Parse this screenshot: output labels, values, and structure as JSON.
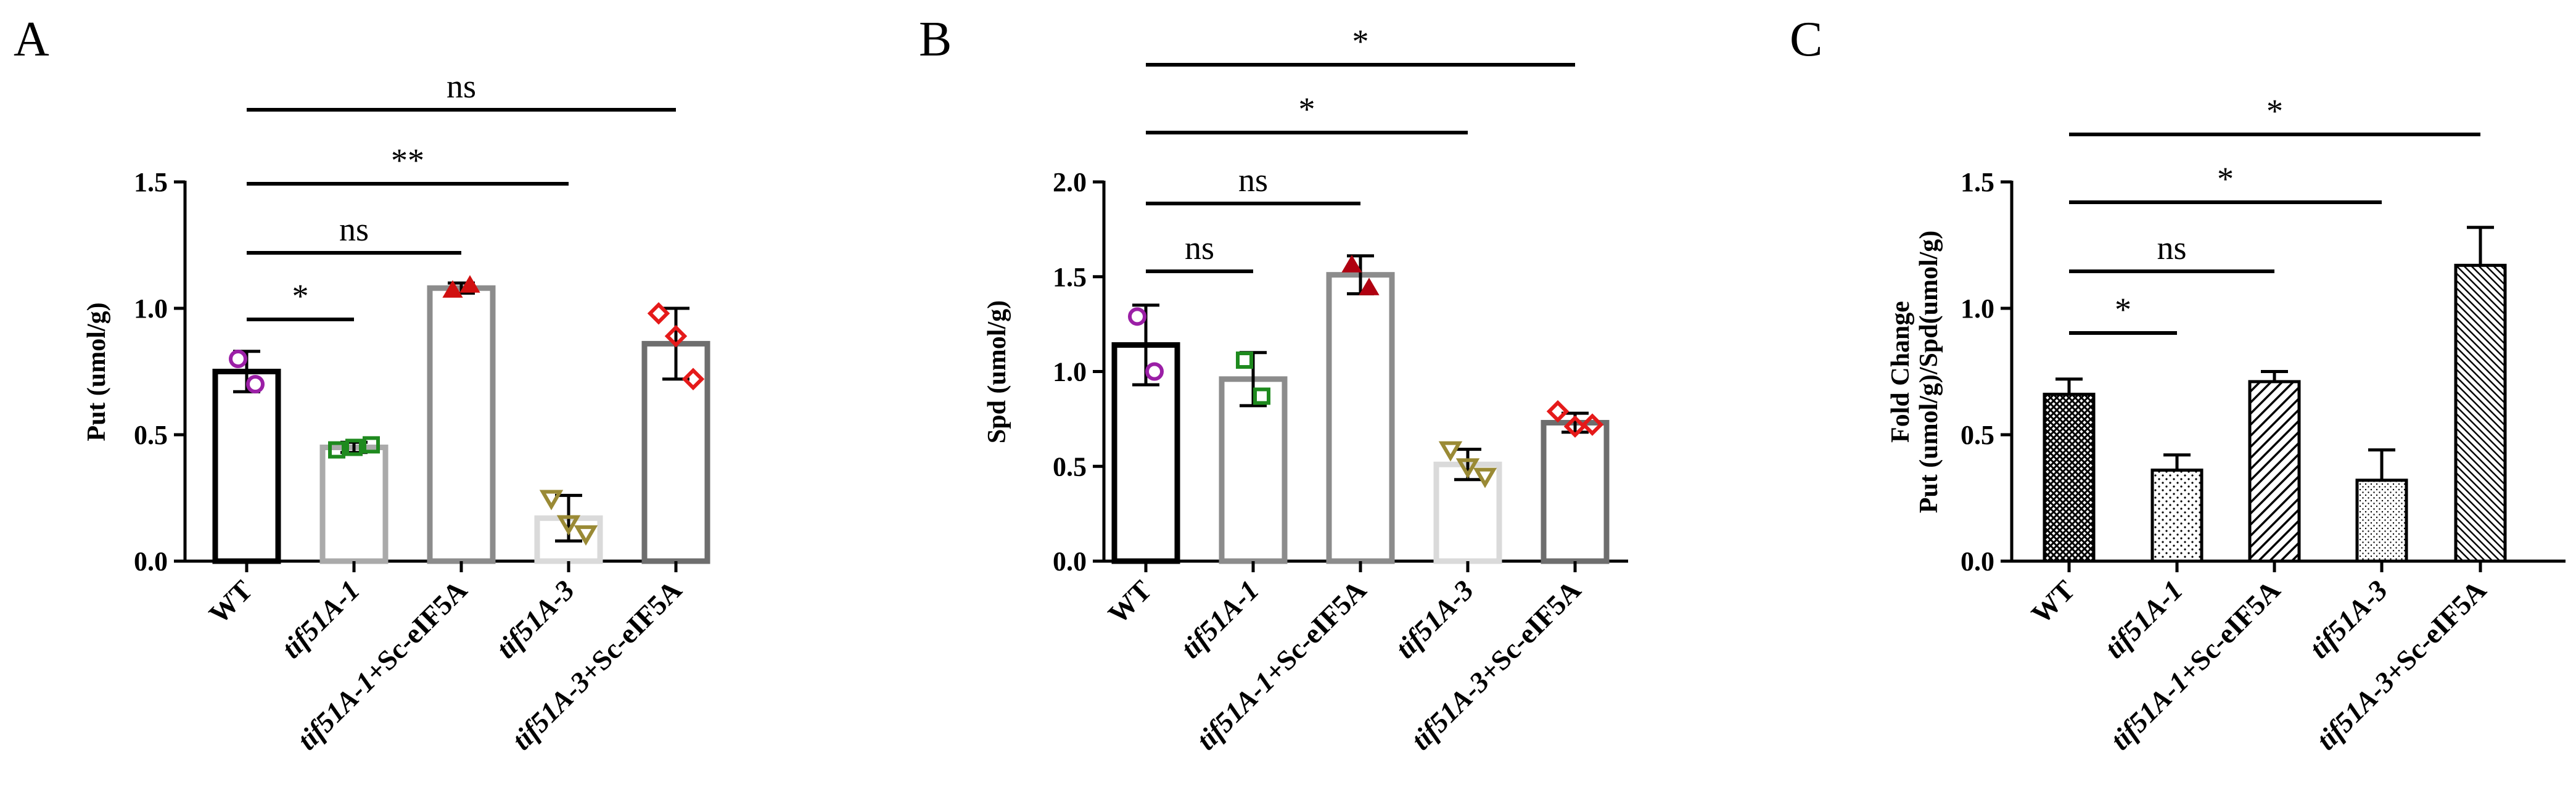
{
  "chart_data": [
    {
      "panel": "A",
      "type": "bar",
      "ylabel": "Put (umol/g)",
      "ylim": [
        0,
        1.5
      ],
      "yticks": [
        "0.0",
        "0.5",
        "1.0",
        "1.5"
      ],
      "categories": [
        {
          "italic": "",
          "plain": "WT"
        },
        {
          "italic": "tif51A-1",
          "plain": ""
        },
        {
          "italic": "tif51A-1",
          "plain": "+Sc-eIF5A"
        },
        {
          "italic": "tif51A-3",
          "plain": ""
        },
        {
          "italic": "tif51A-3",
          "plain": "+Sc-eIF5A"
        }
      ],
      "values": [
        0.75,
        0.45,
        1.08,
        0.17,
        0.86
      ],
      "errors": [
        0.08,
        0.02,
        0.02,
        0.09,
        0.14
      ],
      "bar_style": [
        "solid-black",
        "solid-lightgray",
        "solid-gray",
        "solid-verylightgray",
        "solid-darkgray"
      ],
      "points": [
        {
          "marker": "circle",
          "color": "#9B1FA6",
          "values": [
            0.8,
            0.7
          ]
        },
        {
          "marker": "square",
          "color": "#1E8A1E",
          "values": [
            0.44,
            0.45,
            0.46
          ]
        },
        {
          "marker": "triangle-up",
          "color": "#D01010",
          "values": [
            1.07,
            1.09
          ]
        },
        {
          "marker": "triangle-down",
          "color": "#9A8A35",
          "values": [
            0.25,
            0.15,
            0.11
          ]
        },
        {
          "marker": "diamond",
          "color": "#E51A1A",
          "values": [
            0.98,
            0.89,
            0.72
          ]
        }
      ],
      "comparisons": [
        {
          "label": "*",
          "from": 0,
          "to": 1
        },
        {
          "label": "ns",
          "from": 0,
          "to": 2
        },
        {
          "label": "**",
          "from": 0,
          "to": 3
        },
        {
          "label": "ns",
          "from": 0,
          "to": 4
        }
      ]
    },
    {
      "panel": "B",
      "type": "bar",
      "ylabel": "Spd (umol/g)",
      "ylim": [
        0,
        2.0
      ],
      "yticks": [
        "0.0",
        "0.5",
        "1.0",
        "1.5",
        "2.0"
      ],
      "categories": [
        {
          "italic": "",
          "plain": "WT"
        },
        {
          "italic": "tif51A-1",
          "plain": ""
        },
        {
          "italic": "tif51A-1",
          "plain": "+Sc-eIF5A"
        },
        {
          "italic": "tif51A-3",
          "plain": ""
        },
        {
          "italic": "tif51A-3",
          "plain": "+Sc-eIF5A"
        }
      ],
      "values": [
        1.14,
        0.96,
        1.51,
        0.51,
        0.73
      ],
      "errors": [
        0.21,
        0.14,
        0.1,
        0.08,
        0.05
      ],
      "bar_style": [
        "solid-black",
        "solid-gray",
        "solid-gray",
        "solid-verylightgray",
        "solid-darkgray"
      ],
      "points": [
        {
          "marker": "circle",
          "color": "#9B1FA6",
          "values": [
            1.29,
            1.0
          ]
        },
        {
          "marker": "square",
          "color": "#1E8A1E",
          "values": [
            1.06,
            0.87
          ]
        },
        {
          "marker": "triangle-up",
          "color": "#B00010",
          "values": [
            1.56,
            1.44
          ]
        },
        {
          "marker": "triangle-down",
          "color": "#9A8A35",
          "values": [
            0.59,
            0.5,
            0.45
          ]
        },
        {
          "marker": "diamond",
          "color": "#E51A1A",
          "values": [
            0.79,
            0.71,
            0.72
          ]
        }
      ],
      "comparisons": [
        {
          "label": "ns",
          "from": 0,
          "to": 1
        },
        {
          "label": "ns",
          "from": 0,
          "to": 2
        },
        {
          "label": "*",
          "from": 0,
          "to": 3
        },
        {
          "label": "*",
          "from": 0,
          "to": 4
        }
      ]
    },
    {
      "panel": "C",
      "type": "bar",
      "ylabel_lines": [
        "Fold Change",
        "Put (umol/g)/Spd(umol/g)"
      ],
      "ylim": [
        0,
        1.5
      ],
      "yticks": [
        "0.0",
        "0.5",
        "1.0",
        "1.5"
      ],
      "categories": [
        {
          "italic": "",
          "plain": "WT"
        },
        {
          "italic": "tif51A-1",
          "plain": ""
        },
        {
          "italic": "tif51A-1",
          "plain": "+Sc-eIF5A"
        },
        {
          "italic": "tif51A-3",
          "plain": ""
        },
        {
          "italic": "tif51A-3",
          "plain": "+Sc-eIF5A"
        }
      ],
      "values": [
        0.66,
        0.36,
        0.71,
        0.32,
        1.17
      ],
      "errors": [
        0.06,
        0.06,
        0.04,
        0.12,
        0.15
      ],
      "bar_style": [
        "crosshatch",
        "dots",
        "diag-wide",
        "fine-dots",
        "diag-narrow"
      ],
      "comparisons": [
        {
          "label": "*",
          "from": 0,
          "to": 1
        },
        {
          "label": "ns",
          "from": 0,
          "to": 2
        },
        {
          "label": "*",
          "from": 0,
          "to": 3
        },
        {
          "label": "*",
          "from": 0,
          "to": 4
        }
      ]
    }
  ]
}
